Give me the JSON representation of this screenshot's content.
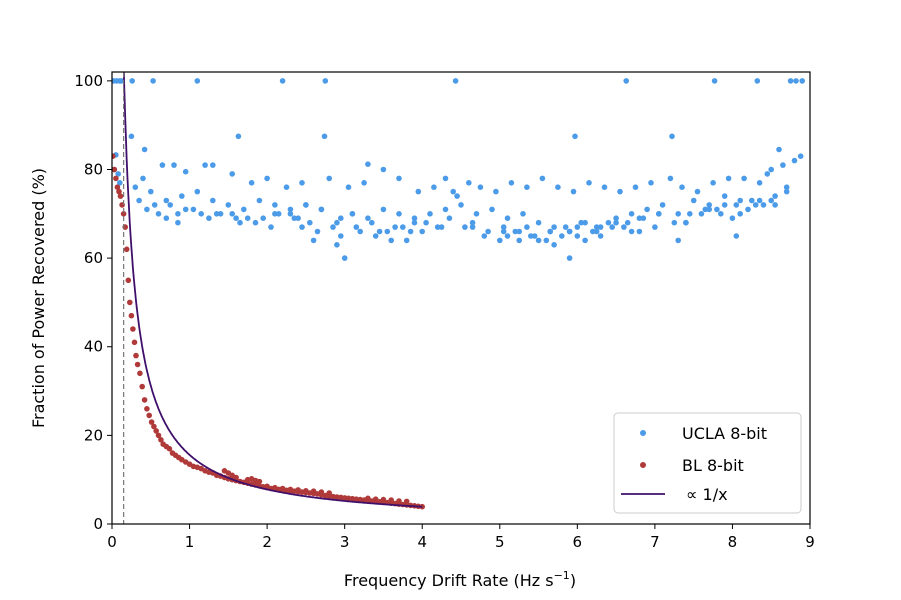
{
  "chart_data": {
    "type": "scatter",
    "xlabel": "Frequency Drift Rate (Hz s",
    "xlabel_sup": "−1",
    "xlabel_close": ")",
    "ylabel": "Fraction of Power Recovered (%)",
    "xlim": [
      0,
      9
    ],
    "ylim": [
      0,
      102
    ],
    "xticks": [
      "0",
      "1",
      "2",
      "3",
      "4",
      "5",
      "6",
      "7",
      "8",
      "9"
    ],
    "yticks": [
      "0",
      "20",
      "40",
      "60",
      "80",
      "100"
    ],
    "grid": false,
    "legend_position": "bottom-right",
    "vline_x": 0.15,
    "colors": {
      "ucla": "#4c9be8",
      "bl": "#b03a3a",
      "fit": "#3f0f6b"
    },
    "series": [
      {
        "name": "UCLA 8-bit",
        "marker": "dot",
        "x": [
          0.02,
          0.06,
          0.1,
          0.12,
          0.26,
          0.53,
          1.1,
          2.2,
          2.75,
          4.43,
          6.63,
          7.77,
          8.32,
          8.75,
          8.82,
          8.9,
          0.05,
          0.25,
          0.42,
          1.63,
          2.74,
          3.3,
          5.97,
          7.22,
          8.6,
          0.03,
          0.08,
          0.4,
          0.65,
          0.8,
          0.95,
          1.2,
          1.3,
          1.55,
          1.8,
          2.0,
          2.25,
          2.45,
          2.8,
          3.05,
          3.25,
          3.5,
          3.7,
          3.95,
          4.15,
          4.3,
          4.6,
          4.75,
          4.95,
          5.15,
          5.35,
          5.55,
          5.75,
          5.95,
          6.15,
          6.35,
          6.55,
          6.75,
          6.95,
          7.2,
          7.35,
          7.55,
          7.75,
          7.95,
          8.15,
          8.35,
          8.45,
          8.5,
          8.65,
          8.8,
          8.88,
          0.1,
          0.3,
          0.5,
          0.7,
          0.9,
          1.1,
          1.3,
          1.5,
          1.7,
          1.9,
          2.1,
          2.3,
          2.5,
          2.7,
          2.9,
          3.1,
          3.3,
          3.5,
          3.7,
          3.9,
          4.1,
          4.3,
          4.5,
          4.7,
          4.9,
          5.1,
          5.3,
          5.5,
          5.7,
          5.9,
          6.1,
          6.3,
          6.5,
          6.7,
          6.9,
          7.1,
          7.3,
          7.5,
          7.7,
          7.9,
          8.1,
          8.3,
          8.5,
          8.7,
          0.35,
          0.55,
          0.75,
          0.95,
          1.15,
          1.35,
          1.55,
          1.75,
          1.95,
          2.15,
          2.35,
          2.55,
          2.85,
          3.15,
          3.45,
          3.75,
          4.05,
          4.35,
          4.65,
          4.85,
          5.05,
          5.25,
          5.45,
          5.65,
          5.85,
          6.05,
          6.25,
          6.45,
          6.65,
          6.85,
          7.05,
          7.25,
          7.45,
          7.65,
          7.85,
          8.05,
          8.25,
          8.55,
          0.45,
          0.85,
          1.25,
          1.65,
          2.05,
          2.45,
          2.65,
          2.95,
          3.2,
          3.4,
          3.6,
          3.85,
          4.2,
          4.55,
          4.8,
          5.0,
          5.2,
          5.4,
          5.6,
          5.8,
          6.0,
          6.2,
          6.4,
          6.6,
          6.8,
          7.0,
          7.4,
          7.6,
          7.8,
          8.0,
          8.2,
          8.4,
          2.6,
          2.9,
          3.0,
          3.55,
          3.8,
          4.4,
          4.45,
          5.1,
          5.25,
          5.5,
          5.7,
          5.9,
          6.1,
          6.3,
          6.7,
          7.3,
          8.05,
          0.6,
          0.7,
          0.85,
          1.05,
          1.4,
          1.6,
          1.85,
          2.1,
          2.3,
          2.4,
          2.5,
          2.7,
          2.95,
          3.1,
          3.35,
          3.65,
          3.9,
          4.0,
          4.25,
          4.65,
          5.05,
          5.35,
          5.65,
          5.9,
          6.0,
          6.25,
          6.5,
          6.8,
          7.05,
          7.4,
          7.7,
          7.9,
          8.1,
          8.35,
          8.55,
          8.7
        ],
        "y": [
          100,
          100,
          100,
          100,
          100,
          100,
          100,
          100,
          100,
          100,
          100,
          100,
          100,
          100,
          100,
          100,
          83.3,
          87.5,
          84.5,
          87.5,
          87.5,
          81.2,
          87.5,
          87.5,
          84.5,
          80,
          79,
          78,
          81,
          81,
          79.5,
          81,
          81,
          79,
          77,
          78,
          76,
          77,
          78,
          76,
          77,
          80,
          78,
          75,
          76,
          78,
          77,
          76,
          75,
          77,
          76,
          78,
          76,
          75,
          77,
          76,
          75,
          76,
          77,
          78,
          76,
          75,
          77,
          78,
          78,
          77,
          79,
          80,
          81,
          82,
          83,
          77,
          76,
          75,
          73,
          74,
          75,
          73,
          72,
          71,
          73,
          72,
          70,
          72,
          71,
          68,
          70,
          69,
          71,
          70,
          69,
          70,
          71,
          72,
          70,
          71,
          69,
          70,
          68,
          67,
          66,
          68,
          67,
          69,
          70,
          71,
          72,
          70,
          73,
          72,
          74,
          73,
          72,
          73,
          75,
          73,
          72,
          72,
          71,
          70,
          70,
          70,
          69,
          69,
          70,
          69,
          68,
          67,
          67,
          66,
          67,
          68,
          69,
          67,
          66,
          67,
          66,
          65,
          66,
          67,
          68,
          66,
          67,
          68,
          69,
          70,
          68,
          70,
          71,
          70,
          72,
          73,
          74,
          71,
          70,
          69,
          68,
          67,
          67,
          66,
          65,
          66,
          65,
          64,
          66,
          67,
          67,
          65,
          64,
          66,
          65,
          64,
          65,
          67,
          66,
          68,
          67,
          66,
          67,
          68,
          70,
          71,
          69,
          71,
          72,
          64,
          63,
          60,
          66,
          64,
          75,
          74,
          65,
          64,
          64,
          63,
          60,
          64,
          65,
          66,
          64,
          65,
          70,
          69,
          68,
          71,
          70,
          69,
          68,
          70,
          71,
          69,
          72,
          71,
          69,
          70,
          68,
          67,
          68,
          66,
          67,
          68,
          66,
          67,
          66,
          66,
          65,
          67,
          68,
          69,
          70,
          68,
          71,
          72,
          70,
          73,
          72,
          76
        ]
      },
      {
        "name": "BL 8-bit",
        "marker": "dot",
        "x": [
          0.01,
          0.03,
          0.05,
          0.07,
          0.09,
          0.11,
          0.13,
          0.15,
          0.17,
          0.19,
          0.21,
          0.23,
          0.25,
          0.27,
          0.29,
          0.31,
          0.33,
          0.36,
          0.39,
          0.42,
          0.45,
          0.48,
          0.51,
          0.54,
          0.57,
          0.6,
          0.63,
          0.66,
          0.7,
          0.74,
          0.78,
          0.82,
          0.86,
          0.9,
          0.95,
          1.0,
          1.05,
          1.1,
          1.15,
          1.2,
          1.25,
          1.3,
          1.35,
          1.4,
          1.45,
          1.5,
          1.55,
          1.6,
          1.65,
          1.7,
          1.75,
          1.8,
          1.85,
          1.9,
          1.95,
          2.0,
          2.05,
          2.1,
          2.15,
          2.2,
          2.25,
          2.3,
          2.35,
          2.4,
          2.45,
          2.5,
          2.55,
          2.6,
          2.65,
          2.7,
          2.75,
          2.8,
          2.85,
          2.9,
          2.95,
          3.0,
          3.05,
          3.1,
          3.15,
          3.2,
          3.25,
          3.3,
          3.35,
          3.4,
          3.45,
          3.5,
          3.55,
          3.6,
          3.65,
          3.7,
          3.75,
          3.8,
          3.85,
          3.9,
          3.95,
          4.0,
          1.45,
          1.5,
          1.55,
          1.6,
          1.75,
          1.8,
          1.85,
          1.9,
          2.0,
          2.1,
          2.2,
          2.3,
          2.4,
          2.5,
          2.6,
          2.7,
          2.8,
          3.3,
          3.4,
          3.5,
          3.6,
          3.7,
          3.8
        ],
        "y": [
          83,
          80,
          78,
          76,
          75,
          74,
          72,
          70,
          67,
          62,
          55,
          50,
          47,
          44,
          41,
          38,
          36,
          34,
          31,
          28,
          26,
          24.5,
          23,
          22,
          21,
          20,
          19,
          18,
          17.5,
          17,
          16,
          15.5,
          15,
          14.5,
          14,
          13.5,
          13,
          12.8,
          12.5,
          12,
          11.7,
          11.5,
          11,
          10.8,
          10.5,
          10.2,
          10,
          9.8,
          9.6,
          9.4,
          9.2,
          9,
          8.8,
          8.6,
          8.4,
          8.2,
          8,
          7.9,
          7.8,
          7.7,
          7.6,
          7.5,
          7.4,
          7.3,
          7.2,
          7.1,
          7,
          6.9,
          6.8,
          6.6,
          6.4,
          6.3,
          6.2,
          6.1,
          6,
          5.9,
          5.8,
          5.7,
          5.6,
          5.5,
          5.4,
          5.3,
          5.2,
          5.1,
          5,
          4.9,
          4.8,
          4.7,
          4.6,
          4.5,
          4.4,
          4.3,
          4.2,
          4.1,
          4.0,
          3.9,
          12,
          11.5,
          11,
          10.5,
          10,
          10.2,
          9.8,
          9.6,
          8.5,
          8.2,
          8,
          7.8,
          7.7,
          7.5,
          7.4,
          7.2,
          7,
          5.8,
          5.6,
          5.5,
          5.4,
          5.2,
          5.1
        ]
      },
      {
        "name": "∝ 1/x",
        "marker": "line",
        "coefficient": 15.6
      }
    ]
  }
}
